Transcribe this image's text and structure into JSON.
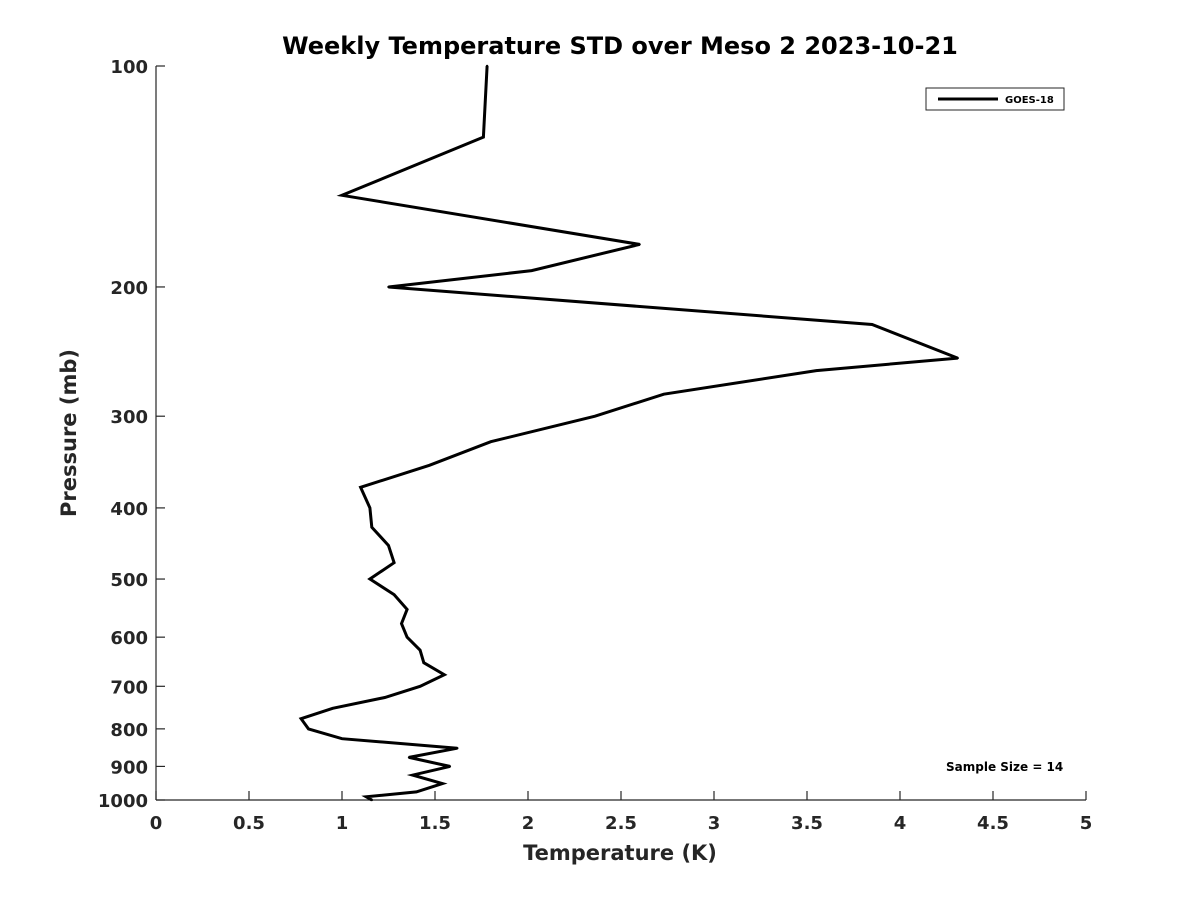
{
  "chart_data": {
    "type": "line",
    "title": "Weekly Temperature STD over Meso 2 2023-10-21",
    "xlabel": "Temperature (K)",
    "ylabel": "Pressure (mb)",
    "xlim": [
      0,
      5
    ],
    "ylim": [
      100,
      1000
    ],
    "yscale": "log",
    "y_reversed": true,
    "xticks": [
      0,
      0.5,
      1,
      1.5,
      2,
      2.5,
      3,
      3.5,
      4,
      4.5,
      5
    ],
    "xtick_labels": [
      "0",
      "0.5",
      "1",
      "1.5",
      "2",
      "2.5",
      "3",
      "3.5",
      "4",
      "4.5",
      "5"
    ],
    "yticks": [
      100,
      200,
      300,
      400,
      500,
      600,
      700,
      800,
      900,
      1000
    ],
    "ytick_labels": [
      "100",
      "200",
      "300",
      "400",
      "500",
      "600",
      "700",
      "800",
      "900",
      "1000"
    ],
    "grid": false,
    "legend_position": "top-right",
    "annotation": "Sample Size = 14",
    "series": [
      {
        "name": "GOES-18",
        "color": "#000000",
        "points": [
          [
            1.78,
            100
          ],
          [
            1.76,
            125
          ],
          [
            1.0,
            150
          ],
          [
            2.6,
            175
          ],
          [
            2.02,
            190
          ],
          [
            1.25,
            200
          ],
          [
            3.85,
            225
          ],
          [
            4.31,
            250
          ],
          [
            3.55,
            260
          ],
          [
            2.73,
            280
          ],
          [
            2.36,
            300
          ],
          [
            1.8,
            325
          ],
          [
            1.47,
            350
          ],
          [
            1.1,
            375
          ],
          [
            1.15,
            400
          ],
          [
            1.16,
            425
          ],
          [
            1.25,
            450
          ],
          [
            1.28,
            475
          ],
          [
            1.15,
            500
          ],
          [
            1.28,
            525
          ],
          [
            1.35,
            550
          ],
          [
            1.32,
            575
          ],
          [
            1.35,
            600
          ],
          [
            1.42,
            625
          ],
          [
            1.44,
            650
          ],
          [
            1.55,
            675
          ],
          [
            1.42,
            700
          ],
          [
            1.23,
            725
          ],
          [
            0.95,
            750
          ],
          [
            0.78,
            775
          ],
          [
            0.82,
            800
          ],
          [
            1.0,
            825
          ],
          [
            1.62,
            850
          ],
          [
            1.36,
            875
          ],
          [
            1.58,
            900
          ],
          [
            1.38,
            925
          ],
          [
            1.54,
            950
          ],
          [
            1.4,
            975
          ],
          [
            1.13,
            990
          ],
          [
            1.16,
            1000
          ]
        ]
      }
    ]
  }
}
